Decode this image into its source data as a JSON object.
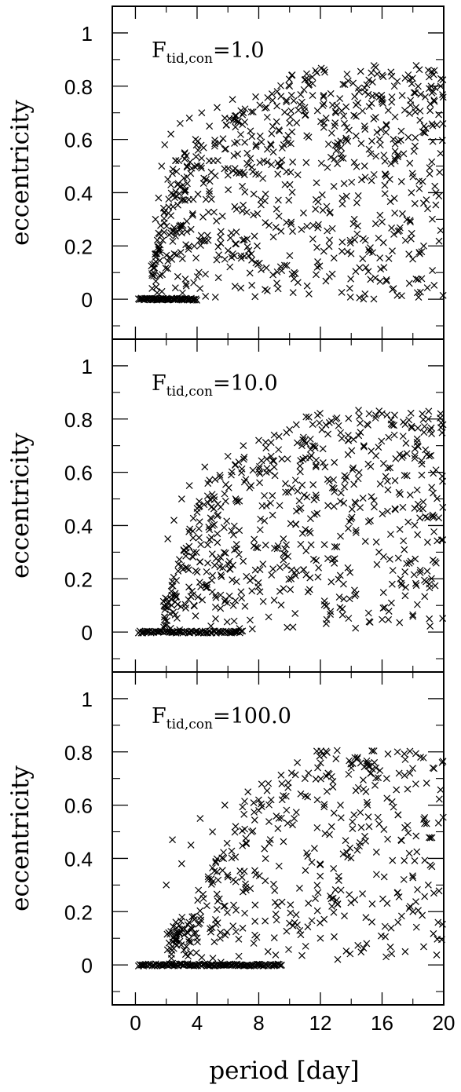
{
  "chart_data": [
    {
      "type": "scatter",
      "annotation": {
        "symbol": "F",
        "subscript": "tid,con",
        "rest": "=1.0"
      },
      "ylabel": "eccentricity",
      "xlim": [
        -1.5,
        20
      ],
      "ylim": [
        -0.15,
        1.1
      ],
      "yticks": [
        0,
        0.2,
        0.4,
        0.6,
        0.8,
        1
      ],
      "ytick_labels": [
        "0",
        "0.2",
        "0.4",
        "0.6",
        "0.8",
        "1"
      ],
      "marker": "x",
      "circular_period_range": [
        0.2,
        4.0
      ],
      "scatter": {
        "count": 700,
        "x_range": [
          1.0,
          20
        ],
        "y_range": [
          0.0,
          0.88
        ],
        "rise_period": 2.0
      },
      "x": [
        0.4,
        0.8,
        1.2,
        1.6,
        2.0,
        2.5,
        3.0,
        3.5,
        3.8,
        1.3,
        1.5,
        1.7,
        1.9,
        2.1,
        2.3,
        2.6,
        2.9,
        3.2,
        3.5,
        3.9,
        4.3,
        4.8,
        5.3,
        5.8,
        6.3,
        7.0,
        7.8,
        8.5,
        9.2,
        10.0,
        10.8,
        11.5,
        12.2,
        13.0,
        13.8,
        14.5,
        15.3,
        16.0,
        16.8,
        17.5,
        18.2,
        19.0,
        19.8,
        3.3,
        5.8,
        10.3,
        14.2,
        18.7,
        7.9,
        11.8,
        16.5,
        19.5
      ],
      "y": [
        0,
        0,
        0,
        0,
        0,
        0,
        0,
        0,
        0,
        0.3,
        0.38,
        0.5,
        0.58,
        0.45,
        0.62,
        0.52,
        0.66,
        0.55,
        0.68,
        0.6,
        0.7,
        0.65,
        0.72,
        0.68,
        0.75,
        0.7,
        0.76,
        0.72,
        0.78,
        0.8,
        0.74,
        0.81,
        0.76,
        0.7,
        0.82,
        0.78,
        0.85,
        0.74,
        0.8,
        0.83,
        0.72,
        0.86,
        0.8,
        0.05,
        0.15,
        0.1,
        0.3,
        0.2,
        0.2,
        0.12,
        0.45,
        0.4
      ]
    },
    {
      "type": "scatter",
      "annotation": {
        "symbol": "F",
        "subscript": "tid,con",
        "rest": "=10.0"
      },
      "ylabel": "eccentricity",
      "xlim": [
        -1.5,
        20
      ],
      "ylim": [
        -0.15,
        1.1
      ],
      "yticks": [
        0,
        0.2,
        0.4,
        0.6,
        0.8,
        1
      ],
      "ytick_labels": [
        "0",
        "0.2",
        "0.4",
        "0.6",
        "0.8",
        "1"
      ],
      "marker": "x",
      "circular_period_range": [
        0.2,
        7.0
      ],
      "scatter": {
        "count": 580,
        "x_range": [
          1.8,
          20
        ],
        "y_range": [
          0.0,
          0.84
        ],
        "rise_period": 3.5
      },
      "x": [
        0.5,
        1.5,
        2.5,
        3.5,
        4.5,
        5.5,
        6.5,
        2.1,
        2.5,
        3.0,
        3.5,
        4.0,
        4.5,
        5.0,
        5.5,
        6.0,
        6.5,
        7.0,
        7.5,
        8.0,
        8.5,
        9.0,
        9.5,
        10.0,
        10.8,
        11.5,
        12.3,
        13.0,
        13.8,
        14.6,
        15.3,
        16.0,
        16.8,
        17.5,
        18.3,
        19.0,
        19.8,
        3.8,
        5.2,
        9.6,
        13.5,
        17.2,
        15.8,
        10.1
      ],
      "y": [
        0,
        0,
        0,
        0,
        0,
        0,
        0,
        0.35,
        0.42,
        0.5,
        0.55,
        0.45,
        0.62,
        0.4,
        0.58,
        0.66,
        0.5,
        0.7,
        0.55,
        0.72,
        0.6,
        0.74,
        0.65,
        0.76,
        0.7,
        0.78,
        0.62,
        0.8,
        0.72,
        0.75,
        0.68,
        0.82,
        0.74,
        0.78,
        0.7,
        0.8,
        0.82,
        0.1,
        0.05,
        0.35,
        0.18,
        0.2,
        0.3,
        0.2
      ]
    },
    {
      "type": "scatter",
      "annotation": {
        "symbol": "F",
        "subscript": "tid,con",
        "rest": "=100.0"
      },
      "ylabel": "eccentricity",
      "xlabel": "period [day]",
      "xlim": [
        -1.5,
        20
      ],
      "ylim": [
        -0.15,
        1.1
      ],
      "xticks": [
        0,
        4,
        8,
        12,
        16,
        20
      ],
      "xtick_labels": [
        "0",
        "4",
        "8",
        "12",
        "16",
        "20"
      ],
      "yticks": [
        0,
        0.2,
        0.4,
        0.6,
        0.8,
        1
      ],
      "ytick_labels": [
        "0",
        "0.2",
        "0.4",
        "0.6",
        "0.8",
        "1"
      ],
      "marker": "x",
      "circular_period_range": [
        0.2,
        9.5
      ],
      "scatter": {
        "count": 420,
        "x_range": [
          2.0,
          20
        ],
        "y_range": [
          0.0,
          0.82
        ],
        "rise_period": 7.0
      },
      "x": [
        0.5,
        2.0,
        3.5,
        5.0,
        6.5,
        8.0,
        9.0,
        2.0,
        2.4,
        3.0,
        3.6,
        4.2,
        5.0,
        5.8,
        6.5,
        7.3,
        8.0,
        8.8,
        9.5,
        10.3,
        11.0,
        11.8,
        12.5,
        13.3,
        14.0,
        14.8,
        15.5,
        16.3,
        17.0,
        17.8,
        18.5,
        19.3,
        19.9,
        3.4,
        5.5,
        8.6,
        12.0,
        15.0,
        18.0,
        17.5,
        10.5,
        19.0
      ],
      "y": [
        0,
        0,
        0,
        0,
        0,
        0,
        0,
        0.3,
        0.47,
        0.38,
        0.45,
        0.55,
        0.5,
        0.6,
        0.52,
        0.65,
        0.58,
        0.62,
        0.68,
        0.55,
        0.7,
        0.62,
        0.72,
        0.6,
        0.74,
        0.66,
        0.76,
        0.7,
        0.8,
        0.72,
        0.78,
        0.74,
        0.76,
        0.12,
        0.1,
        0.05,
        0.1,
        0.08,
        0.2,
        0.05,
        0.15,
        0.3
      ]
    }
  ]
}
